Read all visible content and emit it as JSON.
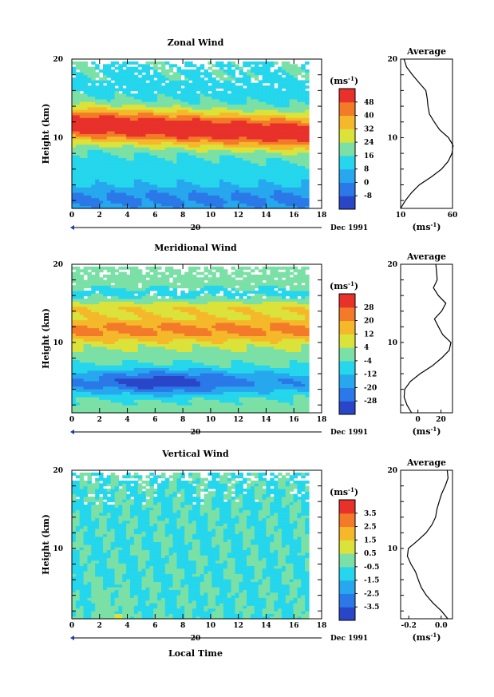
{
  "figure": {
    "xlabel": "Local Time",
    "date_label": "Dec 1991",
    "day_label": "20"
  },
  "chart_data": [
    {
      "type": "heatmap",
      "title": "Zonal Wind",
      "ylabel": "Height (km)",
      "xlim": [
        0,
        18
      ],
      "ylim": [
        1,
        20
      ],
      "x_ticks": [
        "0",
        "2",
        "4",
        "6",
        "8",
        "10",
        "12",
        "14",
        "16",
        "18"
      ],
      "y_ticks": [
        "10",
        "20"
      ],
      "colorbar_unit": "(ms",
      "colorbar_unit_sup": "-1",
      "colorbar_unit_close": ")",
      "colorbar_levels": [
        -8,
        0,
        8,
        16,
        24,
        32,
        40,
        48
      ],
      "colorbar_labels": [
        "-8",
        "0",
        "8",
        "16",
        "24",
        "32",
        "40",
        "48"
      ],
      "profile": {
        "title": "Average",
        "xlim": [
          10,
          60
        ],
        "x_ticks": [
          "10",
          "60"
        ],
        "xlabel": "(ms",
        "xlabel_sup": "-1",
        "xlabel_close": ")",
        "heights": [
          1,
          2,
          3,
          4,
          5,
          6,
          7,
          8,
          9,
          10,
          11,
          12,
          13,
          14,
          15,
          16,
          17,
          18,
          19,
          20
        ],
        "values": [
          10,
          14,
          20,
          28,
          40,
          50,
          56,
          59,
          60,
          56,
          48,
          43,
          38,
          36,
          35,
          34,
          28,
          22,
          16,
          13
        ]
      }
    },
    {
      "type": "heatmap",
      "title": "Meridional Wind",
      "ylabel": "Height (km)",
      "xlim": [
        0,
        18
      ],
      "ylim": [
        1,
        20
      ],
      "x_ticks": [
        "0",
        "2",
        "4",
        "6",
        "8",
        "10",
        "12",
        "14",
        "16",
        "18"
      ],
      "y_ticks": [
        "10",
        "20"
      ],
      "colorbar_unit": "(ms",
      "colorbar_unit_sup": "-1",
      "colorbar_unit_close": ")",
      "colorbar_levels": [
        -28,
        -20,
        -12,
        -4,
        4,
        12,
        20,
        28
      ],
      "colorbar_labels": [
        "-28",
        "-20",
        "-12",
        "-4",
        "4",
        "12",
        "20",
        "28"
      ],
      "profile": {
        "title": "Average",
        "xlim": [
          -15,
          30
        ],
        "x_ticks": [
          "0",
          "20"
        ],
        "xlabel": "(ms",
        "xlabel_sup": "-1",
        "xlabel_close": ")",
        "heights": [
          1,
          2,
          3,
          4,
          5,
          6,
          7,
          8,
          9,
          10,
          11,
          12,
          13,
          14,
          15,
          16,
          17,
          18,
          19,
          20
        ],
        "values": [
          -6,
          -10,
          -12,
          -11,
          -6,
          2,
          12,
          20,
          27,
          29,
          22,
          18,
          14,
          20,
          24,
          18,
          14,
          17,
          16,
          15
        ]
      }
    },
    {
      "type": "heatmap",
      "title": "Vertical Wind",
      "ylabel": "Height (km)",
      "xlim": [
        0,
        18
      ],
      "ylim": [
        1,
        20
      ],
      "x_ticks": [
        "0",
        "2",
        "4",
        "6",
        "8",
        "10",
        "12",
        "14",
        "16",
        "18"
      ],
      "y_ticks": [
        "10",
        "20"
      ],
      "colorbar_unit": "(ms",
      "colorbar_unit_sup": "-1",
      "colorbar_unit_close": ")",
      "colorbar_levels": [
        -3.5,
        -2.5,
        -1.5,
        -0.5,
        0.5,
        1.5,
        2.5,
        3.5
      ],
      "colorbar_labels": [
        "-3.5",
        "-2.5",
        "-1.5",
        "-0.5",
        "0.5",
        "1.5",
        "2.5",
        "3.5"
      ],
      "profile": {
        "title": "Average",
        "xlim": [
          -0.25,
          0.07
        ],
        "x_ticks": [
          "-0.2",
          "0.0"
        ],
        "xlabel": "(ms",
        "xlabel_sup": "-1",
        "xlabel_close": ")",
        "heights": [
          1,
          2,
          3,
          4,
          5,
          6,
          7,
          8,
          9,
          10,
          11,
          12,
          13,
          14,
          15,
          16,
          17,
          18,
          19,
          20
        ],
        "values": [
          0.03,
          0.0,
          -0.04,
          -0.08,
          -0.12,
          -0.15,
          -0.17,
          -0.19,
          -0.2,
          -0.19,
          -0.14,
          -0.1,
          -0.07,
          -0.04,
          -0.02,
          0.0,
          0.01,
          0.02,
          0.03,
          0.03
        ]
      }
    }
  ]
}
